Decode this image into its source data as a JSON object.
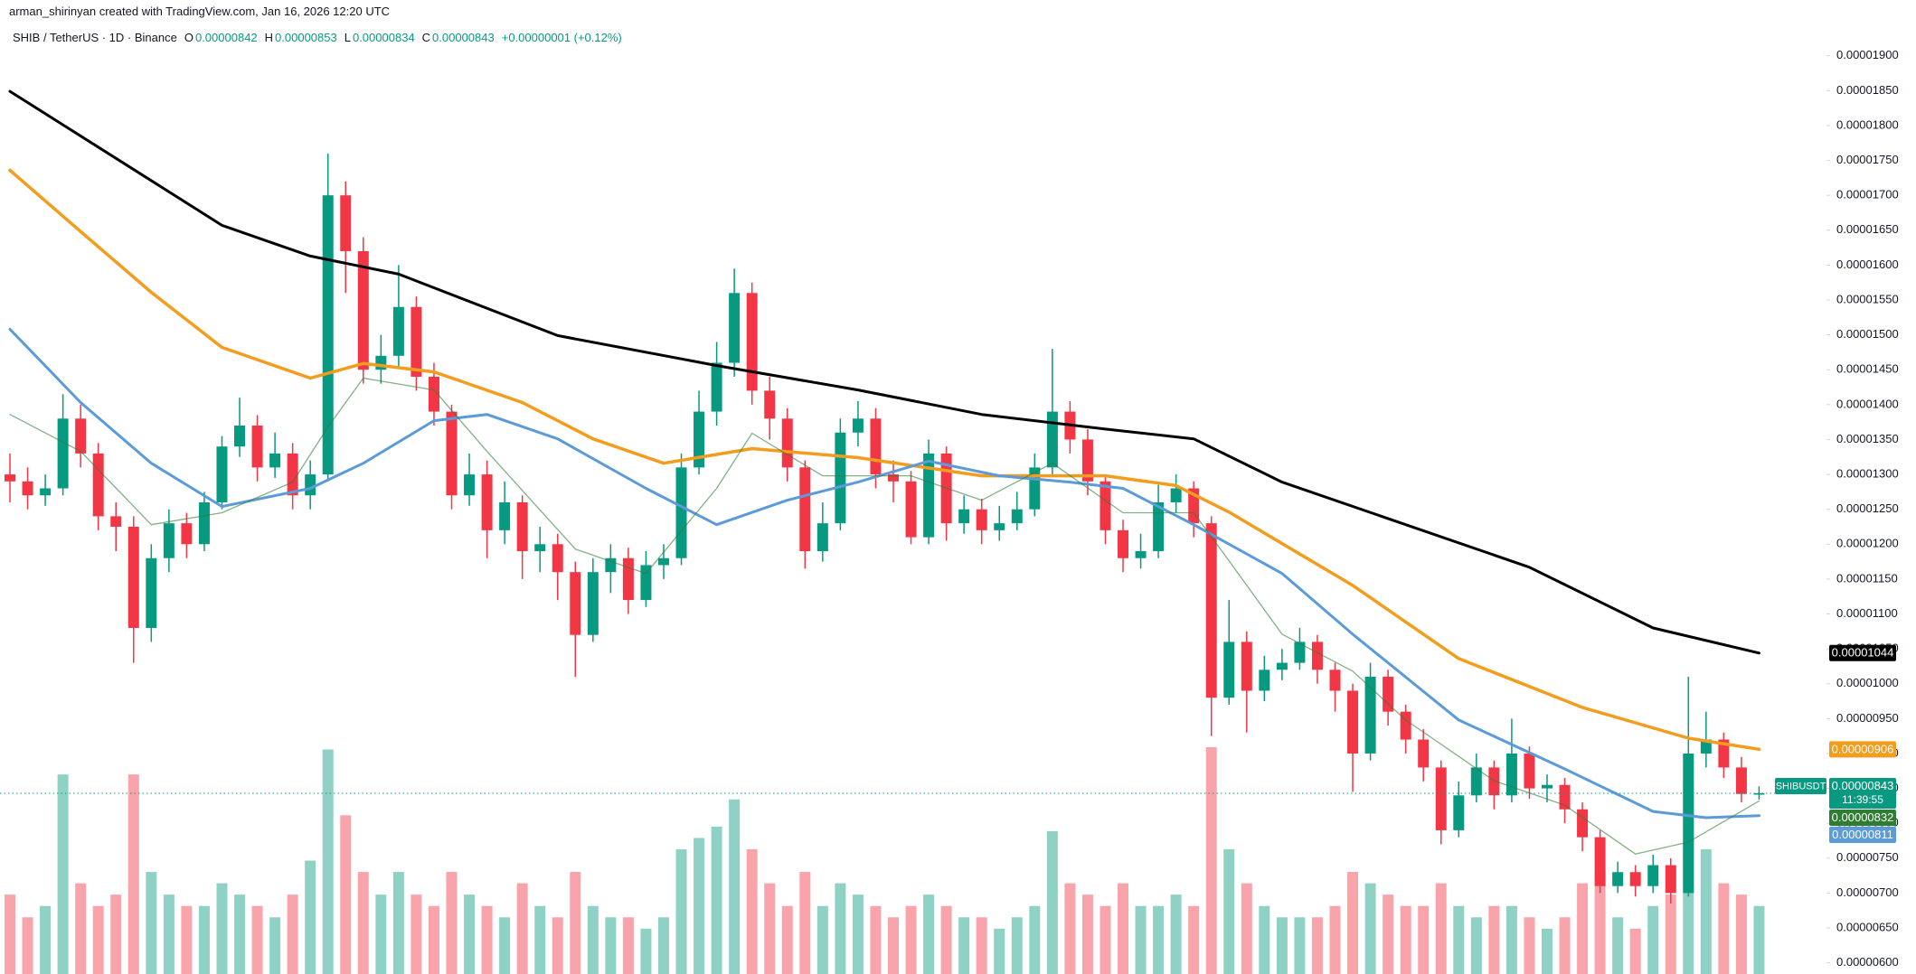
{
  "header": {
    "credit": "arman_shirinyan created with TradingView.com, Jan 16, 2026 12:20 UTC"
  },
  "chart_data": {
    "type": "candlestick",
    "title": "SHIB / TetherUS · 1D · Binance",
    "ohlc_legend": [
      {
        "key": "O",
        "value": 8.42e-06,
        "label": "0.00000842"
      },
      {
        "key": "H",
        "value": 8.53e-06,
        "label": "0.00000853"
      },
      {
        "key": "L",
        "value": 8.34e-06,
        "label": "0.00000834"
      },
      {
        "key": "C",
        "value": 8.43e-06,
        "label": "0.00000843"
      }
    ],
    "change": "+0.00000001 (+0.12%)",
    "up_color": "#089981",
    "down_color": "#f23645",
    "grid": false,
    "ylim": [
      5.84e-06,
      1.91e-05
    ],
    "vlim": [
      0,
      100
    ],
    "yticks": [
      {
        "value": 1.9e-05,
        "label": "0.00001900"
      },
      {
        "value": 1.85e-05,
        "label": "0.00001850"
      },
      {
        "value": 1.8e-05,
        "label": "0.00001800"
      },
      {
        "value": 1.75e-05,
        "label": "0.00001750"
      },
      {
        "value": 1.7e-05,
        "label": "0.00001700"
      },
      {
        "value": 1.65e-05,
        "label": "0.00001650"
      },
      {
        "value": 1.6e-05,
        "label": "0.00001600"
      },
      {
        "value": 1.55e-05,
        "label": "0.00001550"
      },
      {
        "value": 1.5e-05,
        "label": "0.00001500"
      },
      {
        "value": 1.45e-05,
        "label": "0.00001450"
      },
      {
        "value": 1.4e-05,
        "label": "0.00001400"
      },
      {
        "value": 1.35e-05,
        "label": "0.00001350"
      },
      {
        "value": 1.3e-05,
        "label": "0.00001300"
      },
      {
        "value": 1.25e-05,
        "label": "0.00001250"
      },
      {
        "value": 1.2e-05,
        "label": "0.00001200"
      },
      {
        "value": 1.15e-05,
        "label": "0.00001150"
      },
      {
        "value": 1.1e-05,
        "label": "0.00001100"
      },
      {
        "value": 1.05e-05,
        "label": "0.00001050"
      },
      {
        "value": 1e-05,
        "label": "0.00001000"
      },
      {
        "value": 9.5e-06,
        "label": "0.00000950"
      },
      {
        "value": 9e-06,
        "label": "0.00000900"
      },
      {
        "value": 8.5e-06,
        "label": "0.00000850"
      },
      {
        "value": 8e-06,
        "label": "0.00000800"
      },
      {
        "value": 7.5e-06,
        "label": "0.00000750"
      },
      {
        "value": 7e-06,
        "label": "0.00000700"
      },
      {
        "value": 6.5e-06,
        "label": "0.00000650"
      },
      {
        "value": 6e-06,
        "label": "0.00000600"
      }
    ],
    "open": [
      1.3e-05,
      1.29e-05,
      1.27e-05,
      1.28e-05,
      1.38e-05,
      1.33e-05,
      1.24e-05,
      1.225e-05,
      1.08e-05,
      1.18e-05,
      1.23e-05,
      1.2e-05,
      1.26e-05,
      1.34e-05,
      1.37e-05,
      1.31e-05,
      1.33e-05,
      1.27e-05,
      1.3e-05,
      1.7e-05,
      1.62e-05,
      1.45e-05,
      1.47e-05,
      1.54e-05,
      1.44e-05,
      1.39e-05,
      1.27e-05,
      1.3e-05,
      1.22e-05,
      1.26e-05,
      1.19e-05,
      1.2e-05,
      1.16e-05,
      1.07e-05,
      1.16e-05,
      1.18e-05,
      1.12e-05,
      1.17e-05,
      1.18e-05,
      1.31e-05,
      1.39e-05,
      1.46e-05,
      1.56e-05,
      1.42e-05,
      1.38e-05,
      1.31e-05,
      1.19e-05,
      1.23e-05,
      1.36e-05,
      1.38e-05,
      1.3e-05,
      1.29e-05,
      1.21e-05,
      1.33e-05,
      1.23e-05,
      1.25e-05,
      1.22e-05,
      1.23e-05,
      1.25e-05,
      1.31e-05,
      1.39e-05,
      1.35e-05,
      1.29e-05,
      1.22e-05,
      1.18e-05,
      1.19e-05,
      1.26e-05,
      1.28e-05,
      1.23e-05,
      9.8e-06,
      1.06e-05,
      9.9e-06,
      1.02e-05,
      1.03e-05,
      1.06e-05,
      1.02e-05,
      9.9e-06,
      9e-06,
      1.01e-05,
      9.6e-06,
      9.2e-06,
      8.8e-06,
      7.9e-06,
      8.4e-06,
      8.8e-06,
      8.4e-06,
      9e-06,
      8.5e-06,
      8.55e-06,
      8.2e-06,
      7.8e-06,
      7.1e-06,
      7.3e-06,
      7.1e-06,
      7.4e-06,
      7e-06,
      9e-06,
      9.2e-06,
      8.8e-06,
      8.42e-06
    ],
    "high": [
      1.33e-05,
      1.31e-05,
      1.3e-05,
      1.415e-05,
      1.4e-05,
      1.345e-05,
      1.26e-05,
      1.24e-05,
      1.2e-05,
      1.25e-05,
      1.245e-05,
      1.275e-05,
      1.355e-05,
      1.41e-05,
      1.385e-05,
      1.36e-05,
      1.345e-05,
      1.32e-05,
      1.76e-05,
      1.72e-05,
      1.64e-05,
      1.5e-05,
      1.6e-05,
      1.555e-05,
      1.46e-05,
      1.4e-05,
      1.33e-05,
      1.32e-05,
      1.29e-05,
      1.27e-05,
      1.225e-05,
      1.215e-05,
      1.175e-05,
      1.18e-05,
      1.2e-05,
      1.195e-05,
      1.19e-05,
      1.2e-05,
      1.33e-05,
      1.42e-05,
      1.49e-05,
      1.595e-05,
      1.575e-05,
      1.44e-05,
      1.395e-05,
      1.32e-05,
      1.26e-05,
      1.38e-05,
      1.405e-05,
      1.395e-05,
      1.32e-05,
      1.305e-05,
      1.35e-05,
      1.34e-05,
      1.27e-05,
      1.265e-05,
      1.255e-05,
      1.275e-05,
      1.33e-05,
      1.48e-05,
      1.405e-05,
      1.365e-05,
      1.3e-05,
      1.235e-05,
      1.215e-05,
      1.285e-05,
      1.3e-05,
      1.29e-05,
      1.24e-05,
      1.12e-05,
      1.075e-05,
      1.04e-05,
      1.05e-05,
      1.08e-05,
      1.07e-05,
      1.03e-05,
      1e-05,
      1.03e-05,
      1.02e-05,
      9.7e-06,
      9.35e-06,
      8.9e-06,
      8.6e-06,
      9e-06,
      8.9e-06,
      9.5e-06,
      9.1e-06,
      8.7e-06,
      8.65e-06,
      8.3e-06,
      7.9e-06,
      7.45e-06,
      7.4e-06,
      7.55e-06,
      7.5e-06,
      1.01e-05,
      9.6e-06,
      9.3e-06,
      8.95e-06,
      8.53e-06
    ],
    "low": [
      1.26e-05,
      1.25e-05,
      1.255e-05,
      1.27e-05,
      1.31e-05,
      1.22e-05,
      1.19e-05,
      1.03e-05,
      1.06e-05,
      1.16e-05,
      1.18e-05,
      1.19e-05,
      1.25e-05,
      1.325e-05,
      1.29e-05,
      1.295e-05,
      1.25e-05,
      1.25e-05,
      1.29e-05,
      1.56e-05,
      1.43e-05,
      1.43e-05,
      1.455e-05,
      1.42e-05,
      1.37e-05,
      1.25e-05,
      1.255e-05,
      1.18e-05,
      1.2e-05,
      1.15e-05,
      1.16e-05,
      1.12e-05,
      1.01e-05,
      1.06e-05,
      1.13e-05,
      1.1e-05,
      1.11e-05,
      1.15e-05,
      1.17e-05,
      1.3e-05,
      1.37e-05,
      1.44e-05,
      1.4e-05,
      1.35e-05,
      1.29e-05,
      1.165e-05,
      1.175e-05,
      1.22e-05,
      1.34e-05,
      1.28e-05,
      1.26e-05,
      1.2e-05,
      1.2e-05,
      1.205e-05,
      1.215e-05,
      1.2e-05,
      1.205e-05,
      1.22e-05,
      1.24e-05,
      1.3e-05,
      1.33e-05,
      1.27e-05,
      1.2e-05,
      1.16e-05,
      1.165e-05,
      1.18e-05,
      1.245e-05,
      1.21e-05,
      9.25e-06,
      9.7e-06,
      9.3e-06,
      9.75e-06,
      1.005e-05,
      1.02e-05,
      1e-05,
      9.6e-06,
      8.45e-06,
      8.9e-06,
      9.4e-06,
      9e-06,
      8.6e-06,
      7.7e-06,
      7.8e-06,
      8.3e-06,
      8.2e-06,
      8.3e-06,
      8.35e-06,
      8.3e-06,
      8e-06,
      7.6e-06,
      7e-06,
      7e-06,
      6.95e-06,
      7e-06,
      6.85e-06,
      6.95e-06,
      8.8e-06,
      8.65e-06,
      8.3e-06,
      8.34e-06
    ],
    "close": [
      1.29e-05,
      1.27e-05,
      1.28e-05,
      1.38e-05,
      1.33e-05,
      1.24e-05,
      1.225e-05,
      1.08e-05,
      1.18e-05,
      1.23e-05,
      1.2e-05,
      1.26e-05,
      1.34e-05,
      1.37e-05,
      1.31e-05,
      1.33e-05,
      1.27e-05,
      1.3e-05,
      1.7e-05,
      1.62e-05,
      1.45e-05,
      1.47e-05,
      1.54e-05,
      1.44e-05,
      1.39e-05,
      1.27e-05,
      1.3e-05,
      1.22e-05,
      1.26e-05,
      1.19e-05,
      1.2e-05,
      1.16e-05,
      1.07e-05,
      1.16e-05,
      1.18e-05,
      1.12e-05,
      1.17e-05,
      1.18e-05,
      1.31e-05,
      1.39e-05,
      1.46e-05,
      1.56e-05,
      1.42e-05,
      1.38e-05,
      1.31e-05,
      1.19e-05,
      1.23e-05,
      1.36e-05,
      1.38e-05,
      1.3e-05,
      1.29e-05,
      1.21e-05,
      1.33e-05,
      1.23e-05,
      1.25e-05,
      1.22e-05,
      1.23e-05,
      1.25e-05,
      1.31e-05,
      1.39e-05,
      1.35e-05,
      1.29e-05,
      1.22e-05,
      1.18e-05,
      1.19e-05,
      1.26e-05,
      1.28e-05,
      1.23e-05,
      9.8e-06,
      1.06e-05,
      9.9e-06,
      1.02e-05,
      1.03e-05,
      1.06e-05,
      1.02e-05,
      9.9e-06,
      9e-06,
      1.01e-05,
      9.6e-06,
      9.2e-06,
      8.8e-06,
      7.9e-06,
      8.4e-06,
      8.8e-06,
      8.4e-06,
      9e-06,
      8.5e-06,
      8.55e-06,
      8.2e-06,
      7.8e-06,
      7.1e-06,
      7.3e-06,
      7.1e-06,
      7.4e-06,
      7e-06,
      9e-06,
      9.2e-06,
      8.8e-06,
      8.42e-06,
      8.43e-06
    ],
    "volume": [
      35,
      25,
      30,
      88,
      40,
      30,
      35,
      88,
      45,
      35,
      30,
      30,
      40,
      35,
      30,
      25,
      35,
      50,
      99,
      70,
      45,
      35,
      45,
      35,
      30,
      45,
      35,
      30,
      25,
      40,
      30,
      25,
      45,
      30,
      25,
      25,
      20,
      25,
      55,
      60,
      65,
      77,
      55,
      40,
      30,
      45,
      30,
      40,
      35,
      30,
      25,
      30,
      35,
      30,
      25,
      25,
      20,
      25,
      30,
      63,
      40,
      35,
      30,
      40,
      30,
      30,
      35,
      30,
      100,
      55,
      40,
      30,
      25,
      25,
      25,
      30,
      45,
      40,
      35,
      30,
      30,
      40,
      30,
      25,
      30,
      30,
      25,
      20,
      25,
      40,
      45,
      25,
      20,
      30,
      35,
      85,
      55,
      40,
      35,
      30
    ],
    "series": [
      {
        "color": "#000000",
        "x": [
          0,
          6,
          12,
          17,
          22,
          31,
          40,
          48,
          55,
          62,
          67,
          72,
          79,
          86,
          93,
          99
        ],
        "values": [
          1.849e-05,
          1.753e-05,
          1.657e-05,
          1.613e-05,
          1.587e-05,
          1.499e-05,
          1.456e-05,
          1.421e-05,
          1.386e-05,
          1.365e-05,
          1.351e-05,
          1.289e-05,
          1.228e-05,
          1.167e-05,
          1.08e-05,
          1.044e-05
        ],
        "last_label": {
          "value": 1.044e-05,
          "label": "0.00001044"
        }
      },
      {
        "color": "#f29d1d",
        "x": [
          0,
          4,
          8,
          12,
          17,
          20,
          24,
          29,
          33,
          37,
          42,
          48,
          55,
          62,
          66,
          69,
          76,
          82,
          89,
          95,
          99
        ],
        "values": [
          1.736e-05,
          1.648e-05,
          1.561e-05,
          1.482e-05,
          1.438e-05,
          1.459e-05,
          1.447e-05,
          1.403e-05,
          1.351e-05,
          1.316e-05,
          1.337e-05,
          1.324e-05,
          1.298e-05,
          1.298e-05,
          1.284e-05,
          1.246e-05,
          1.141e-05,
          1.036e-05,
          9.66e-06,
          9.22e-06,
          9.06e-06
        ],
        "last_label": {
          "value": 9.06e-06,
          "label": "0.00000906"
        }
      },
      {
        "color": "#5b9bd9",
        "x": [
          0,
          4,
          8,
          12,
          17,
          20,
          24,
          27,
          31,
          36,
          40,
          44,
          48,
          52,
          56,
          60,
          63,
          67,
          72,
          76,
          82,
          88,
          93,
          96,
          99
        ],
        "values": [
          1.508e-05,
          1.403e-05,
          1.316e-05,
          1.254e-05,
          1.28e-05,
          1.316e-05,
          1.377e-05,
          1.386e-05,
          1.351e-05,
          1.28e-05,
          1.228e-05,
          1.263e-05,
          1.289e-05,
          1.319e-05,
          1.298e-05,
          1.289e-05,
          1.28e-05,
          1.228e-05,
          1.158e-05,
          1.071e-05,
          9.48e-06,
          8.78e-06,
          8.17e-06,
          8.08e-06,
          8.11e-06
        ],
        "last_label": {
          "value": 8.11e-06,
          "label": "0.00000811"
        }
      },
      {
        "color": "#2e7d32",
        "x": [
          0,
          4,
          8,
          12,
          16,
          18,
          20,
          24,
          27,
          32,
          36,
          40,
          42,
          46,
          51,
          55,
          59,
          63,
          67,
          69,
          72,
          76,
          79,
          84,
          88,
          92,
          95,
          99
        ],
        "values": [
          1.386e-05,
          1.333e-05,
          1.228e-05,
          1.245e-05,
          1.289e-05,
          1.368e-05,
          1.438e-05,
          1.421e-05,
          1.333e-05,
          1.193e-05,
          1.158e-05,
          1.28e-05,
          1.359e-05,
          1.298e-05,
          1.298e-05,
          1.263e-05,
          1.316e-05,
          1.245e-05,
          1.245e-05,
          1.176e-05,
          1.071e-05,
          1.018e-05,
          9.48e-06,
          8.61e-06,
          8.26e-06,
          7.56e-06,
          7.73e-06,
          8.32e-06
        ],
        "last_label": {
          "value": 8.32e-06,
          "label": "0.00000832"
        }
      }
    ],
    "last_price": {
      "symbol": "SHIBUSDT",
      "value": 8.43e-06,
      "label": "0.00000843",
      "countdown": "11:39:55"
    }
  }
}
